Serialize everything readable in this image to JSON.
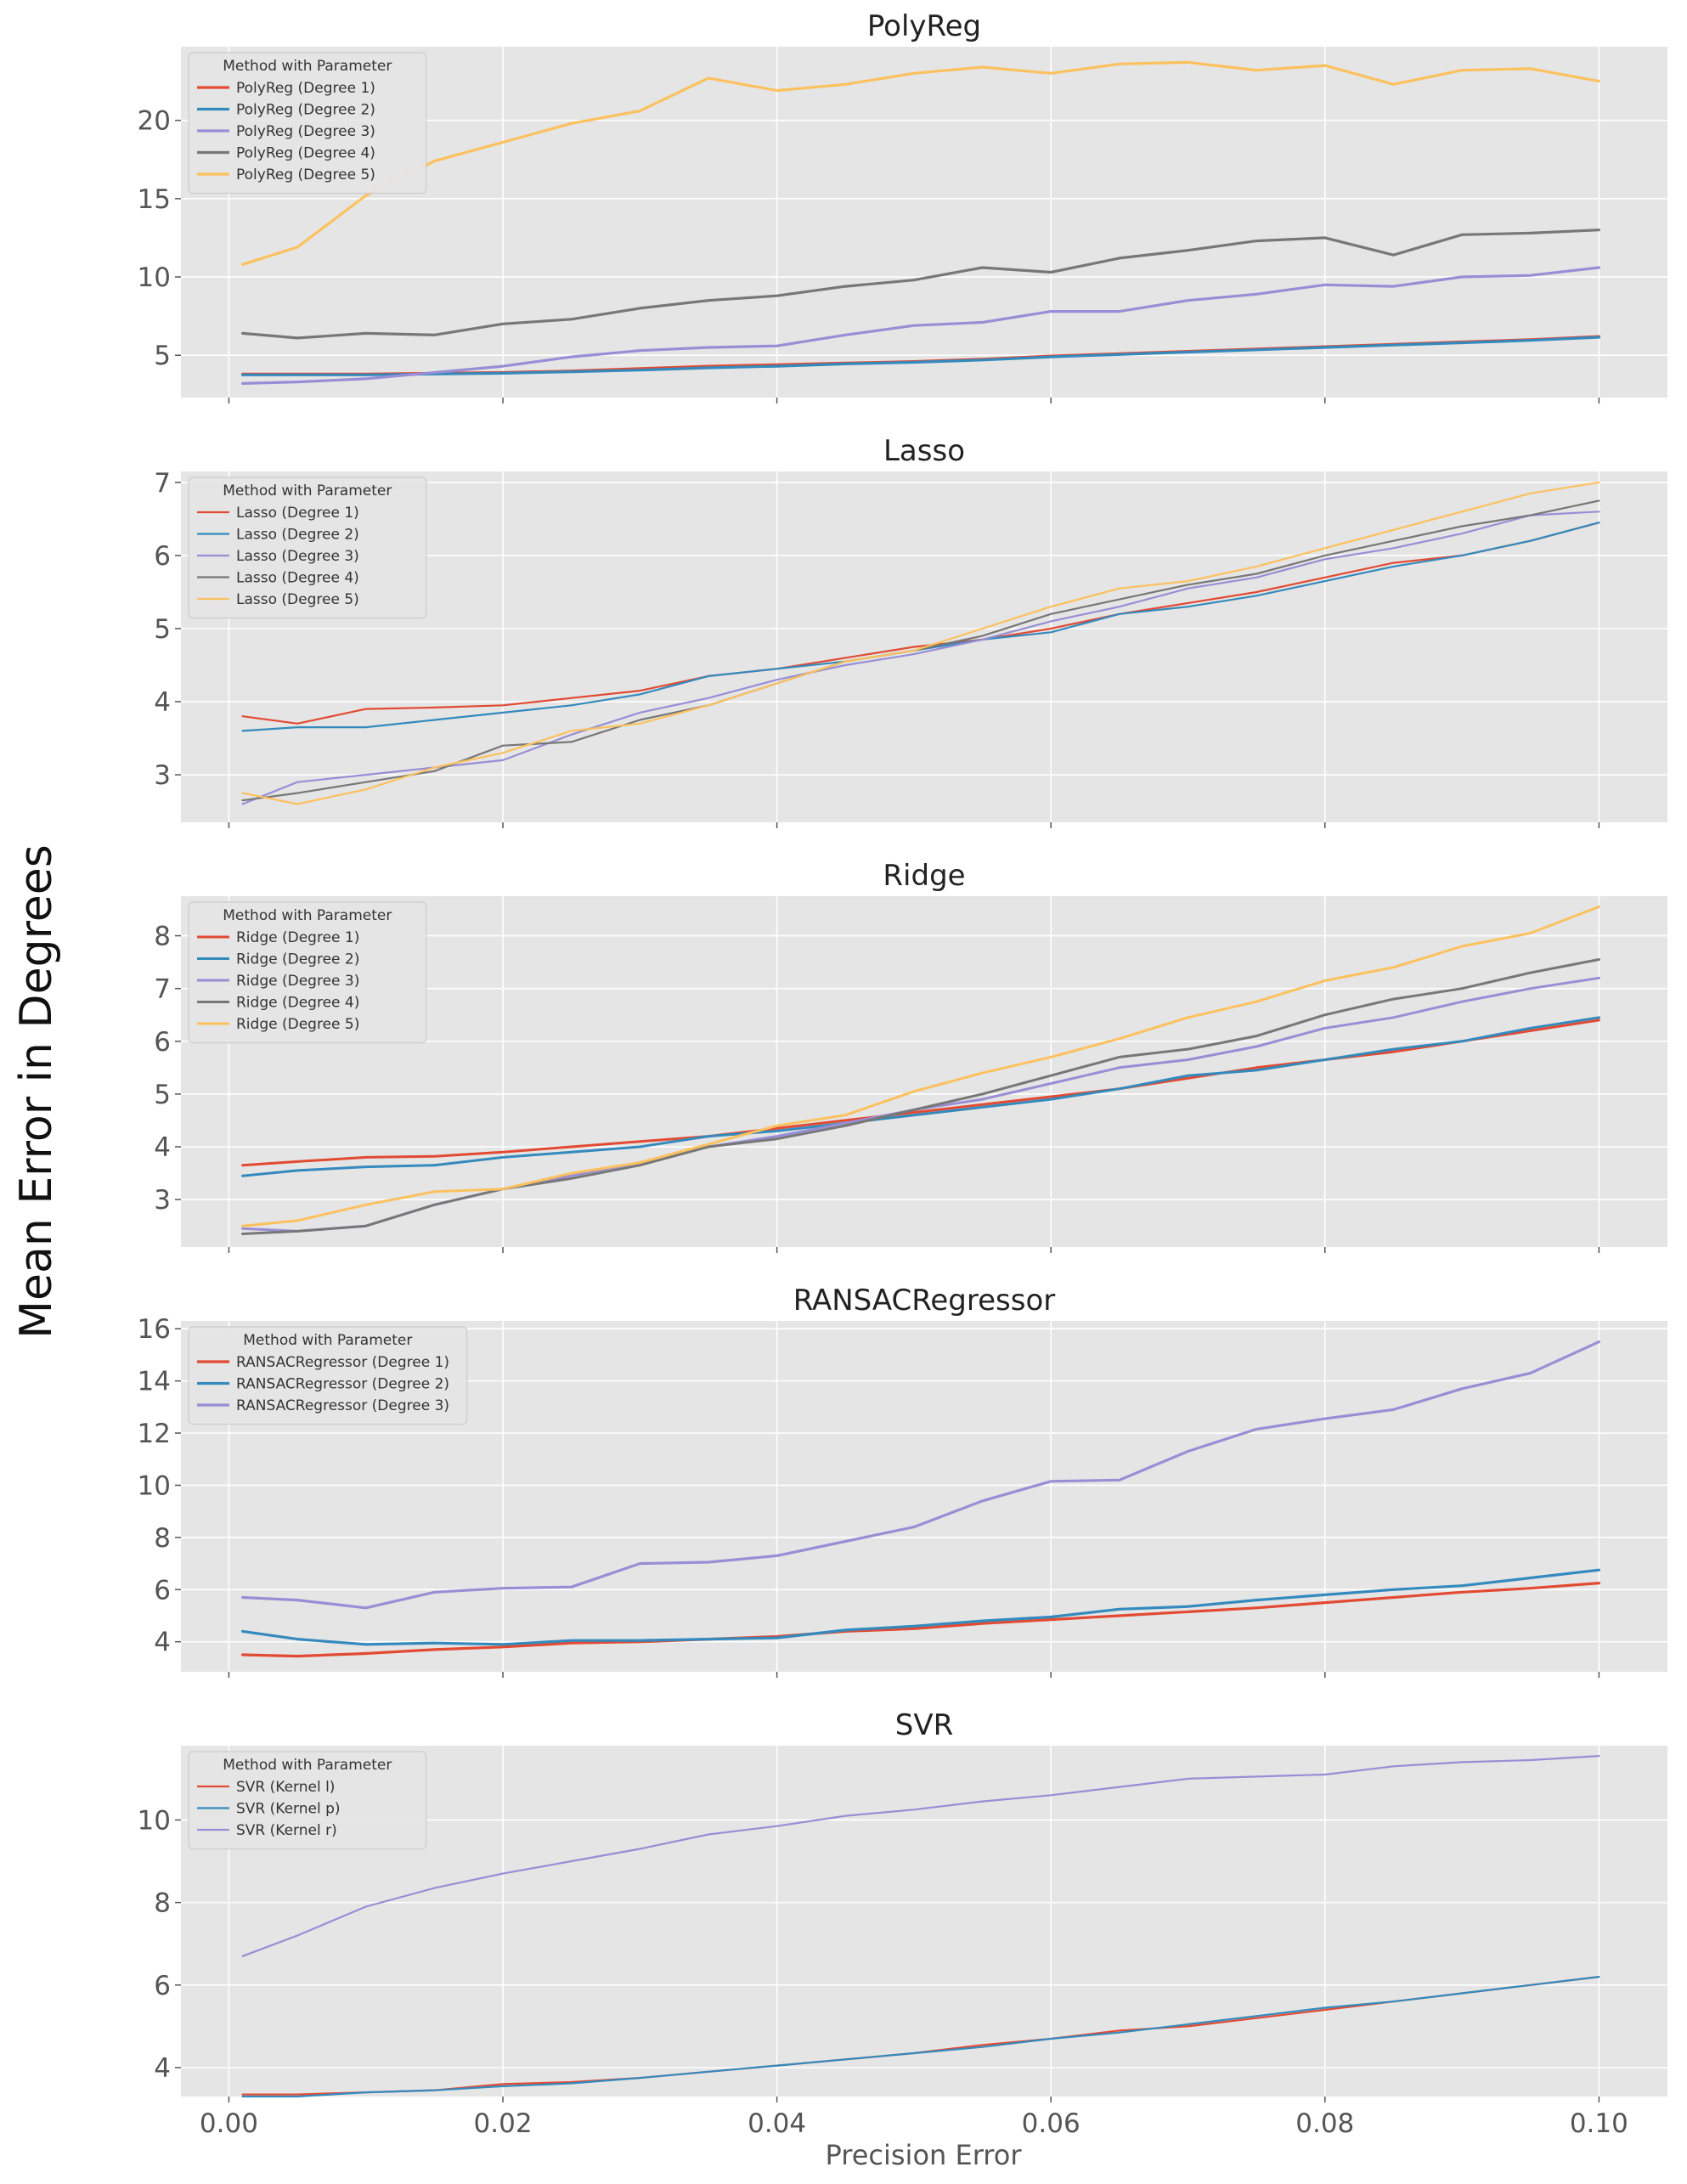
{
  "figure": {
    "ylabel": "Mean Error in Degrees",
    "xlabel": "Precision Error",
    "x_ticks": [
      "0.00",
      "0.02",
      "0.04",
      "0.06",
      "0.08",
      "0.10"
    ],
    "x_tick_values": [
      0.0,
      0.02,
      0.04,
      0.06,
      0.08,
      0.1
    ],
    "xlim": [
      -0.0035,
      0.105
    ],
    "x": [
      0.001,
      0.005,
      0.01,
      0.015,
      0.02,
      0.025,
      0.03,
      0.035,
      0.04,
      0.045,
      0.05,
      0.055,
      0.06,
      0.065,
      0.07,
      0.075,
      0.08,
      0.085,
      0.09,
      0.095,
      0.1
    ],
    "colors": {
      "background": "#E5E5E5",
      "grid": "#FFFFFF",
      "red": "#E24A33",
      "blue": "#348ABD",
      "purple": "#988ED5",
      "gray": "#777777",
      "yellow": "#FBC15E"
    }
  },
  "chart_data": [
    {
      "type": "line",
      "title": "PolyReg",
      "legend_title": "Method with Parameter",
      "legend_location": "upper-left",
      "ylim": [
        2.3,
        24.7
      ],
      "y_ticks": [
        5,
        10,
        15,
        20
      ],
      "line_width": 3.2,
      "series": [
        {
          "name": "PolyReg (Degree 1)",
          "color": "#E24A33",
          "values": [
            3.8,
            3.8,
            3.8,
            3.85,
            3.9,
            4.0,
            4.15,
            4.3,
            4.4,
            4.5,
            4.6,
            4.75,
            4.95,
            5.1,
            5.25,
            5.4,
            5.55,
            5.7,
            5.85,
            6.0,
            6.2
          ]
        },
        {
          "name": "PolyReg (Degree 2)",
          "color": "#348ABD",
          "values": [
            3.75,
            3.75,
            3.75,
            3.8,
            3.85,
            3.95,
            4.05,
            4.2,
            4.3,
            4.45,
            4.55,
            4.7,
            4.9,
            5.05,
            5.2,
            5.35,
            5.5,
            5.65,
            5.8,
            5.95,
            6.15
          ]
        },
        {
          "name": "PolyReg (Degree 3)",
          "color": "#988ED5",
          "values": [
            3.2,
            3.3,
            3.5,
            3.9,
            4.3,
            4.9,
            5.3,
            5.5,
            5.6,
            6.3,
            6.9,
            7.1,
            7.8,
            7.8,
            8.5,
            8.9,
            9.5,
            9.4,
            10.0,
            10.1,
            10.6
          ]
        },
        {
          "name": "PolyReg (Degree 4)",
          "color": "#777777",
          "values": [
            6.4,
            6.1,
            6.4,
            6.3,
            7.0,
            7.3,
            8.0,
            8.5,
            8.8,
            9.4,
            9.8,
            10.6,
            10.3,
            11.2,
            11.7,
            12.3,
            12.5,
            11.4,
            12.7,
            12.8,
            13.0
          ]
        },
        {
          "name": "PolyReg (Degree 5)",
          "color": "#FBC15E",
          "values": [
            10.8,
            11.9,
            15.2,
            17.4,
            18.6,
            19.8,
            20.6,
            22.7,
            21.9,
            22.3,
            23.0,
            23.4,
            23.0,
            23.6,
            23.7,
            23.2,
            23.5,
            22.3,
            23.2,
            23.3,
            22.5
          ]
        }
      ]
    },
    {
      "type": "line",
      "title": "Lasso",
      "legend_title": "Method with Parameter",
      "legend_location": "upper-left",
      "ylim": [
        2.35,
        7.15
      ],
      "y_ticks": [
        3,
        4,
        5,
        6,
        7
      ],
      "line_width": 2.2,
      "series": [
        {
          "name": "Lasso (Degree 1)",
          "color": "#E24A33",
          "values": [
            3.8,
            3.7,
            3.9,
            3.92,
            3.95,
            4.05,
            4.15,
            4.35,
            4.45,
            4.6,
            4.75,
            4.85,
            5.0,
            5.2,
            5.35,
            5.5,
            5.7,
            5.9,
            6.0,
            6.2,
            6.45
          ]
        },
        {
          "name": "Lasso (Degree 2)",
          "color": "#348ABD",
          "values": [
            3.6,
            3.65,
            3.65,
            3.75,
            3.85,
            3.95,
            4.1,
            4.35,
            4.45,
            4.55,
            4.7,
            4.85,
            4.95,
            5.2,
            5.3,
            5.45,
            5.65,
            5.85,
            6.0,
            6.2,
            6.45
          ]
        },
        {
          "name": "Lasso (Degree 3)",
          "color": "#988ED5",
          "values": [
            2.6,
            2.9,
            3.0,
            3.1,
            3.2,
            3.55,
            3.85,
            4.05,
            4.3,
            4.5,
            4.65,
            4.85,
            5.1,
            5.3,
            5.55,
            5.7,
            5.95,
            6.1,
            6.3,
            6.55,
            6.6
          ]
        },
        {
          "name": "Lasso (Degree 4)",
          "color": "#777777",
          "values": [
            2.65,
            2.75,
            2.9,
            3.05,
            3.4,
            3.45,
            3.75,
            3.95,
            4.25,
            4.55,
            4.7,
            4.9,
            5.2,
            5.4,
            5.6,
            5.75,
            6.0,
            6.2,
            6.4,
            6.55,
            6.75
          ]
        },
        {
          "name": "Lasso (Degree 5)",
          "color": "#FBC15E",
          "values": [
            2.75,
            2.6,
            2.8,
            3.1,
            3.3,
            3.6,
            3.7,
            3.95,
            4.25,
            4.55,
            4.7,
            5.0,
            5.3,
            5.55,
            5.65,
            5.85,
            6.1,
            6.35,
            6.6,
            6.85,
            7.0
          ]
        }
      ]
    },
    {
      "type": "line",
      "title": "Ridge",
      "legend_title": "Method with Parameter",
      "legend_location": "upper-left",
      "ylim": [
        2.1,
        8.75
      ],
      "y_ticks": [
        3,
        4,
        5,
        6,
        7,
        8
      ],
      "line_width": 3.0,
      "series": [
        {
          "name": "Ridge (Degree 1)",
          "color": "#E24A33",
          "values": [
            3.65,
            3.72,
            3.8,
            3.82,
            3.9,
            4.0,
            4.1,
            4.2,
            4.35,
            4.5,
            4.65,
            4.8,
            4.95,
            5.1,
            5.3,
            5.5,
            5.65,
            5.8,
            6.0,
            6.2,
            6.4
          ]
        },
        {
          "name": "Ridge (Degree 2)",
          "color": "#348ABD",
          "values": [
            3.45,
            3.55,
            3.62,
            3.65,
            3.8,
            3.9,
            4.0,
            4.2,
            4.3,
            4.45,
            4.6,
            4.75,
            4.9,
            5.1,
            5.35,
            5.45,
            5.65,
            5.85,
            6.0,
            6.25,
            6.45
          ]
        },
        {
          "name": "Ridge (Degree 3)",
          "color": "#988ED5",
          "values": [
            2.45,
            2.4,
            2.5,
            2.9,
            3.2,
            3.45,
            3.7,
            4.0,
            4.2,
            4.45,
            4.7,
            4.9,
            5.2,
            5.5,
            5.65,
            5.9,
            6.25,
            6.45,
            6.75,
            7.0,
            7.2
          ]
        },
        {
          "name": "Ridge (Degree 4)",
          "color": "#777777",
          "values": [
            2.35,
            2.4,
            2.5,
            2.9,
            3.2,
            3.4,
            3.65,
            4.0,
            4.15,
            4.4,
            4.7,
            5.0,
            5.35,
            5.7,
            5.85,
            6.1,
            6.5,
            6.8,
            7.0,
            7.3,
            7.55
          ]
        },
        {
          "name": "Ridge (Degree 5)",
          "color": "#FBC15E",
          "values": [
            2.5,
            2.6,
            2.9,
            3.15,
            3.2,
            3.5,
            3.7,
            4.05,
            4.4,
            4.6,
            5.05,
            5.4,
            5.7,
            6.05,
            6.45,
            6.75,
            7.15,
            7.4,
            7.8,
            8.05,
            8.55
          ]
        }
      ]
    },
    {
      "type": "line",
      "title": "RANSACRegressor",
      "legend_title": "Method with Parameter",
      "legend_location": "upper-left",
      "ylim": [
        2.85,
        16.3
      ],
      "y_ticks": [
        4,
        6,
        8,
        10,
        12,
        14,
        16
      ],
      "line_width": 3.2,
      "series": [
        {
          "name": "RANSACRegressor (Degree 1)",
          "color": "#E24A33",
          "values": [
            3.5,
            3.45,
            3.55,
            3.7,
            3.8,
            3.95,
            4.0,
            4.1,
            4.2,
            4.4,
            4.5,
            4.7,
            4.85,
            5.0,
            5.15,
            5.3,
            5.5,
            5.7,
            5.9,
            6.05,
            6.25
          ]
        },
        {
          "name": "RANSACRegressor (Degree 2)",
          "color": "#348ABD",
          "values": [
            4.4,
            4.1,
            3.9,
            3.95,
            3.9,
            4.05,
            4.05,
            4.1,
            4.15,
            4.45,
            4.6,
            4.8,
            4.95,
            5.25,
            5.35,
            5.6,
            5.8,
            6.0,
            6.15,
            6.45,
            6.75
          ]
        },
        {
          "name": "RANSACRegressor (Degree 3)",
          "color": "#988ED5",
          "values": [
            5.7,
            5.6,
            5.3,
            5.9,
            6.05,
            6.1,
            7.0,
            7.05,
            7.3,
            7.85,
            8.4,
            9.4,
            10.15,
            10.2,
            11.3,
            12.15,
            12.55,
            12.9,
            13.7,
            14.3,
            15.5
          ]
        }
      ]
    },
    {
      "type": "line",
      "title": "SVR",
      "legend_title": "Method with Parameter",
      "legend_location": "upper-left",
      "ylim": [
        3.3,
        11.8
      ],
      "y_ticks": [
        4,
        6,
        8,
        10
      ],
      "line_width": 2.2,
      "series": [
        {
          "name": "SVR (Kernel l)",
          "color": "#E24A33",
          "values": [
            3.35,
            3.35,
            3.4,
            3.45,
            3.6,
            3.65,
            3.75,
            3.9,
            4.05,
            4.2,
            4.35,
            4.55,
            4.7,
            4.9,
            5.0,
            5.2,
            5.4,
            5.6,
            5.8,
            6.0,
            6.2
          ]
        },
        {
          "name": "SVR (Kernel p)",
          "color": "#348ABD",
          "values": [
            3.3,
            3.3,
            3.4,
            3.45,
            3.55,
            3.62,
            3.75,
            3.9,
            4.05,
            4.2,
            4.35,
            4.5,
            4.7,
            4.85,
            5.05,
            5.25,
            5.45,
            5.6,
            5.8,
            6.0,
            6.2
          ]
        },
        {
          "name": "SVR (Kernel r)",
          "color": "#988ED5",
          "values": [
            6.7,
            7.2,
            7.9,
            8.35,
            8.7,
            9.0,
            9.3,
            9.65,
            9.85,
            10.1,
            10.25,
            10.45,
            10.6,
            10.8,
            11.0,
            11.05,
            11.1,
            11.3,
            11.4,
            11.45,
            11.55
          ]
        }
      ]
    }
  ]
}
